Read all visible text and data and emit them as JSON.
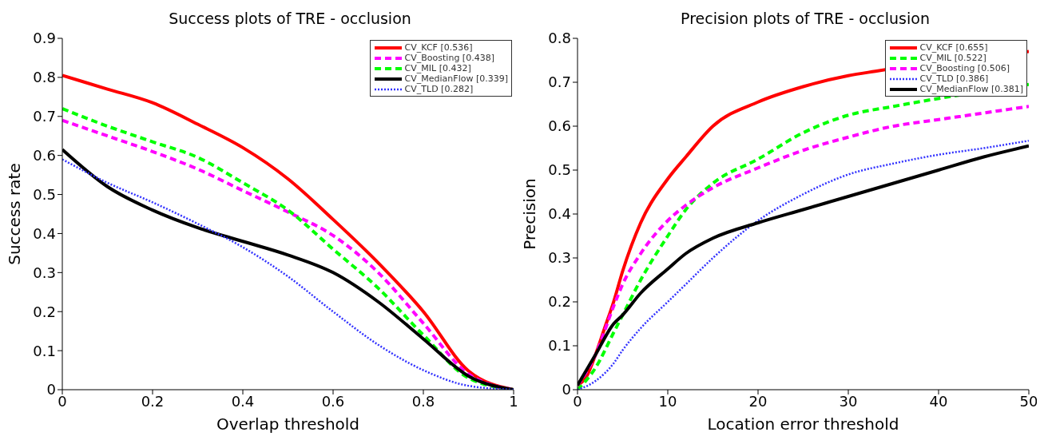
{
  "chart_data": [
    {
      "type": "line",
      "title": "Success plots of TRE - occlusion",
      "xlabel": "Overlap threshold",
      "ylabel": "Success rate",
      "xlim": [
        0,
        1
      ],
      "xticks": [
        0,
        0.2,
        0.4,
        0.6,
        0.8,
        1
      ],
      "ylim": [
        0,
        0.9
      ],
      "yticks": [
        0,
        0.1,
        0.2,
        0.3,
        0.4,
        0.5,
        0.6,
        0.7,
        0.8,
        0.9
      ],
      "grid": false,
      "legend": "top right",
      "x": [
        0,
        0.1,
        0.2,
        0.3,
        0.4,
        0.5,
        0.6,
        0.7,
        0.8,
        0.9,
        1
      ],
      "series": [
        {
          "name": "CV_KCF [0.536]",
          "color": "#ff0000",
          "line_style": "solid",
          "values": [
            0.805,
            0.77,
            0.735,
            0.68,
            0.62,
            0.54,
            0.436,
            0.325,
            0.2,
            0.048,
            0
          ]
        },
        {
          "name": "CV_Boosting [0.438]",
          "color": "#ff00ff",
          "line_style": "dashed",
          "values": [
            0.69,
            0.65,
            0.61,
            0.565,
            0.51,
            0.455,
            0.395,
            0.3,
            0.17,
            0.04,
            0
          ]
        },
        {
          "name": "CV_MIL [0.432]",
          "color": "#00ff00",
          "line_style": "dashed",
          "values": [
            0.72,
            0.675,
            0.635,
            0.595,
            0.53,
            0.46,
            0.36,
            0.26,
            0.14,
            0.03,
            0
          ]
        },
        {
          "name": "CV_MedianFlow [0.339]",
          "color": "#000000",
          "line_style": "solid",
          "values": [
            0.615,
            0.52,
            0.46,
            0.415,
            0.38,
            0.345,
            0.3,
            0.225,
            0.13,
            0.035,
            0
          ]
        },
        {
          "name": "CV_TLD [0.282]",
          "color": "#3333ff",
          "line_style": "dotted",
          "values": [
            0.59,
            0.53,
            0.48,
            0.425,
            0.365,
            0.29,
            0.2,
            0.115,
            0.05,
            0.01,
            0
          ]
        }
      ]
    },
    {
      "type": "line",
      "title": "Precision plots of TRE - occlusion",
      "xlabel": "Location error threshold",
      "ylabel": "Precision",
      "xlim": [
        0,
        50
      ],
      "xticks": [
        0,
        10,
        20,
        30,
        40,
        50
      ],
      "ylim": [
        0,
        0.8
      ],
      "yticks": [
        0,
        0.1,
        0.2,
        0.3,
        0.4,
        0.5,
        0.6,
        0.7,
        0.8
      ],
      "grid": false,
      "legend": "top right",
      "series": [
        {
          "name": "CV_KCF [0.655]",
          "color": "#ff0000",
          "line_style": "solid",
          "x": [
            0,
            1,
            2,
            3,
            4,
            5,
            7,
            10,
            12,
            15,
            20,
            25,
            30,
            33,
            50
          ],
          "values": [
            0.01,
            0.03,
            0.08,
            0.14,
            0.2,
            0.27,
            0.38,
            0.48,
            0.53,
            0.6,
            0.655,
            0.69,
            0.715,
            0.725,
            0.77
          ]
        },
        {
          "name": "CV_MIL [0.522]",
          "color": "#00ff00",
          "line_style": "dashed",
          "x": [
            0,
            2,
            4,
            5,
            7,
            10,
            12,
            15,
            20,
            25,
            30,
            35,
            50
          ],
          "values": [
            0,
            0.05,
            0.13,
            0.17,
            0.25,
            0.35,
            0.41,
            0.47,
            0.525,
            0.585,
            0.625,
            0.645,
            0.695
          ]
        },
        {
          "name": "CV_Boosting [0.506]",
          "color": "#ff00ff",
          "line_style": "dashed",
          "x": [
            0,
            2,
            4,
            5,
            7,
            10,
            12,
            15,
            20,
            25,
            30,
            35,
            40,
            45,
            50
          ],
          "values": [
            0.01,
            0.08,
            0.19,
            0.24,
            0.31,
            0.385,
            0.42,
            0.46,
            0.505,
            0.545,
            0.575,
            0.6,
            0.615,
            0.63,
            0.645
          ]
        },
        {
          "name": "CV_TLD [0.386]",
          "color": "#3333ff",
          "line_style": "dotted",
          "x": [
            0,
            2,
            4,
            5,
            7,
            10,
            12,
            15,
            20,
            25,
            30,
            35,
            40,
            45,
            50
          ],
          "values": [
            0,
            0.02,
            0.06,
            0.09,
            0.14,
            0.2,
            0.24,
            0.3,
            0.385,
            0.445,
            0.49,
            0.515,
            0.535,
            0.55,
            0.567
          ]
        },
        {
          "name": "CV_MedianFlow [0.381]",
          "color": "#000000",
          "line_style": "solid",
          "x": [
            0,
            2,
            4,
            5,
            7,
            10,
            12,
            15,
            20,
            25,
            30,
            35,
            40,
            45,
            50
          ],
          "values": [
            0.01,
            0.08,
            0.15,
            0.17,
            0.22,
            0.275,
            0.31,
            0.345,
            0.38,
            0.41,
            0.44,
            0.47,
            0.5,
            0.53,
            0.555
          ]
        }
      ]
    }
  ]
}
